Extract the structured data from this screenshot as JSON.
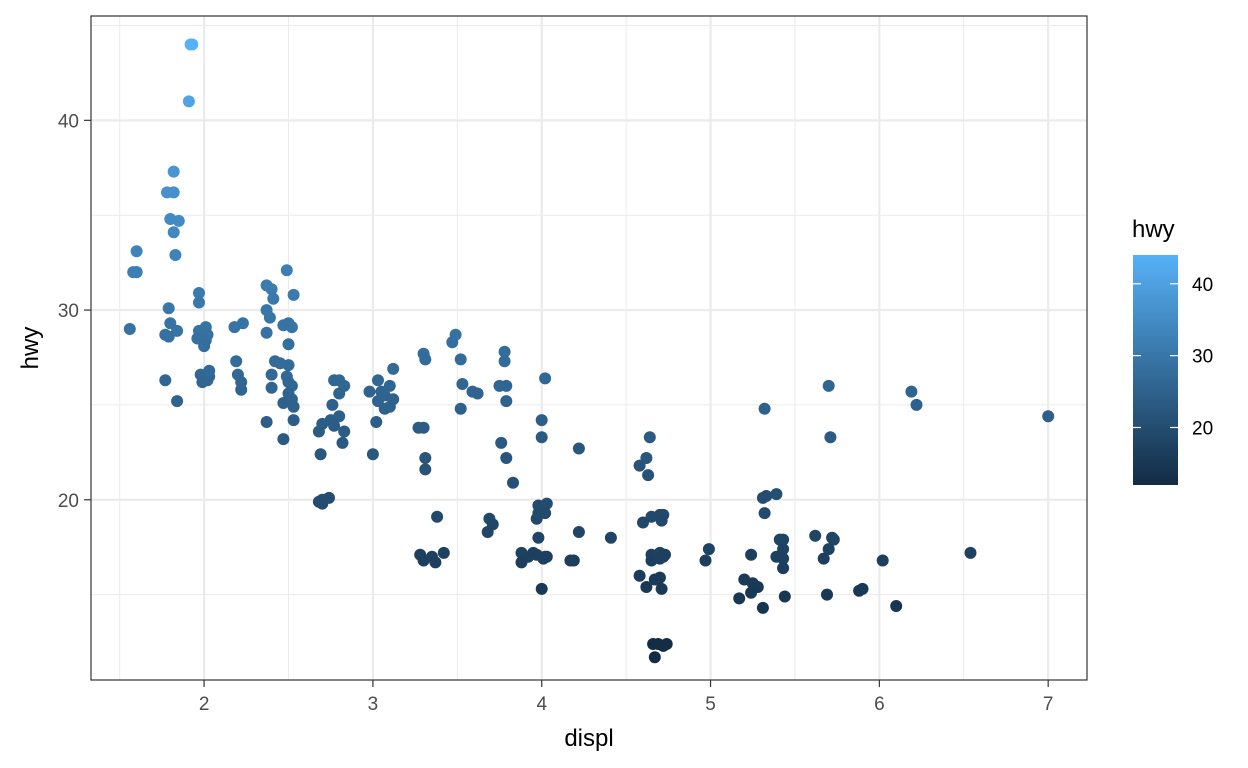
{
  "chart_data": {
    "type": "scatter",
    "xlabel": "displ",
    "ylabel": "hwy",
    "x_ticks": [
      2,
      3,
      4,
      5,
      6,
      7
    ],
    "y_ticks": [
      20,
      30,
      40
    ],
    "xlim": [
      1.33,
      7.23
    ],
    "ylim": [
      10.5,
      45.5
    ],
    "grid": true,
    "legend": {
      "title": "hwy",
      "placement": "right",
      "type": "colorbar",
      "ticks": [
        20,
        30,
        40
      ],
      "range": [
        12,
        44
      ],
      "color_low": "#132B43",
      "color_high": "#56B1F7"
    },
    "points": [
      [
        1.58,
        32
      ],
      [
        1.56,
        29
      ],
      [
        1.6,
        33.1
      ],
      [
        1.6,
        32
      ],
      [
        1.6,
        32
      ],
      [
        1.93,
        44
      ],
      [
        1.92,
        44
      ],
      [
        1.91,
        41
      ],
      [
        1.82,
        37.3
      ],
      [
        1.78,
        36.2
      ],
      [
        1.82,
        36.2
      ],
      [
        1.8,
        34.8
      ],
      [
        1.85,
        34.7
      ],
      [
        1.82,
        34.1
      ],
      [
        1.83,
        32.9
      ],
      [
        1.79,
        30.1
      ],
      [
        1.8,
        29.3
      ],
      [
        1.79,
        28.6
      ],
      [
        1.84,
        28.9
      ],
      [
        1.77,
        28.7
      ],
      [
        1.77,
        26.3
      ],
      [
        1.84,
        25.2
      ],
      [
        1.97,
        30.9
      ],
      [
        1.97,
        30.4
      ],
      [
        2.01,
        29.1
      ],
      [
        1.97,
        28.9
      ],
      [
        2.0,
        28.7
      ],
      [
        1.96,
        28.5
      ],
      [
        2.02,
        28.7
      ],
      [
        2.01,
        28.4
      ],
      [
        2.0,
        28.1
      ],
      [
        1.98,
        26.6
      ],
      [
        1.99,
        26.2
      ],
      [
        2.03,
        26.5
      ],
      [
        2.02,
        26.3
      ],
      [
        2.03,
        26.8
      ],
      [
        2.18,
        29.1
      ],
      [
        2.23,
        29.3
      ],
      [
        2.19,
        27.3
      ],
      [
        2.2,
        26.6
      ],
      [
        2.22,
        26.2
      ],
      [
        2.22,
        25.8
      ],
      [
        2.37,
        31.3
      ],
      [
        2.4,
        31.1
      ],
      [
        2.41,
        30.6
      ],
      [
        2.39,
        29.6
      ],
      [
        2.37,
        30.0
      ],
      [
        2.49,
        32.1
      ],
      [
        2.53,
        30.8
      ],
      [
        2.47,
        29.2
      ],
      [
        2.5,
        29.3
      ],
      [
        2.52,
        29.1
      ],
      [
        2.37,
        28.8
      ],
      [
        2.5,
        28.2
      ],
      [
        2.42,
        27.3
      ],
      [
        2.45,
        27.2
      ],
      [
        2.5,
        27.1
      ],
      [
        2.4,
        26.6
      ],
      [
        2.49,
        26.5
      ],
      [
        2.5,
        26.2
      ],
      [
        2.52,
        26.0
      ],
      [
        2.4,
        25.9
      ],
      [
        2.5,
        25.6
      ],
      [
        2.52,
        25.3
      ],
      [
        2.47,
        25.1
      ],
      [
        2.53,
        24.9
      ],
      [
        2.53,
        24.2
      ],
      [
        2.37,
        24.1
      ],
      [
        2.47,
        23.2
      ],
      [
        2.77,
        26.3
      ],
      [
        2.8,
        26.3
      ],
      [
        2.83,
        26.0
      ],
      [
        2.8,
        25.6
      ],
      [
        2.76,
        25.0
      ],
      [
        2.8,
        24.4
      ],
      [
        2.7,
        24.0
      ],
      [
        2.75,
        24.2
      ],
      [
        2.77,
        23.9
      ],
      [
        2.68,
        23.6
      ],
      [
        2.83,
        23.6
      ],
      [
        2.82,
        23.0
      ],
      [
        2.69,
        22.4
      ],
      [
        2.68,
        19.9
      ],
      [
        2.7,
        19.8
      ],
      [
        2.7,
        20.0
      ],
      [
        2.74,
        20.1
      ],
      [
        3.03,
        26.3
      ],
      [
        2.98,
        25.7
      ],
      [
        3.05,
        25.7
      ],
      [
        3.07,
        25.5
      ],
      [
        3.03,
        25.2
      ],
      [
        3.1,
        26.0
      ],
      [
        3.12,
        25.3
      ],
      [
        3.1,
        24.9
      ],
      [
        3.07,
        24.8
      ],
      [
        3.12,
        26.9
      ],
      [
        3.02,
        24.1
      ],
      [
        3.0,
        22.4
      ],
      [
        3.27,
        23.8
      ],
      [
        3.3,
        23.8
      ],
      [
        3.3,
        27.7
      ],
      [
        3.31,
        27.4
      ],
      [
        3.31,
        22.2
      ],
      [
        3.31,
        21.6
      ],
      [
        3.38,
        19.1
      ],
      [
        3.28,
        17.1
      ],
      [
        3.3,
        16.8
      ],
      [
        3.35,
        17.0
      ],
      [
        3.37,
        16.7
      ],
      [
        3.42,
        17.2
      ],
      [
        3.47,
        28.3
      ],
      [
        3.49,
        28.7
      ],
      [
        3.52,
        27.4
      ],
      [
        3.53,
        26.1
      ],
      [
        3.59,
        25.7
      ],
      [
        3.62,
        25.6
      ],
      [
        3.52,
        24.8
      ],
      [
        3.78,
        27.8
      ],
      [
        3.78,
        27.3
      ],
      [
        3.75,
        26.0
      ],
      [
        3.79,
        26.0
      ],
      [
        3.79,
        25.2
      ],
      [
        3.76,
        23.0
      ],
      [
        3.79,
        22.2
      ],
      [
        3.83,
        20.9
      ],
      [
        3.69,
        19.0
      ],
      [
        3.71,
        18.7
      ],
      [
        3.68,
        18.3
      ],
      [
        3.88,
        17.2
      ],
      [
        3.88,
        16.7
      ],
      [
        3.95,
        17.2
      ],
      [
        3.92,
        17.0
      ],
      [
        3.97,
        17.1
      ],
      [
        4.0,
        24.2
      ],
      [
        4.02,
        26.4
      ],
      [
        4.0,
        23.3
      ],
      [
        3.98,
        19.7
      ],
      [
        4.03,
        19.8
      ],
      [
        3.98,
        19.3
      ],
      [
        4.02,
        19.3
      ],
      [
        3.97,
        19.0
      ],
      [
        3.98,
        18.0
      ],
      [
        4.03,
        17.0
      ],
      [
        4.01,
        16.9
      ],
      [
        4.02,
        17.0
      ],
      [
        4.0,
        15.3
      ],
      [
        4.22,
        22.7
      ],
      [
        4.22,
        18.3
      ],
      [
        4.17,
        16.8
      ],
      [
        4.19,
        16.8
      ],
      [
        4.41,
        18.0
      ],
      [
        4.64,
        23.3
      ],
      [
        4.62,
        22.2
      ],
      [
        4.63,
        21.3
      ],
      [
        4.58,
        21.8
      ],
      [
        4.65,
        19.1
      ],
      [
        4.6,
        18.8
      ],
      [
        4.7,
        19.2
      ],
      [
        4.72,
        19.2
      ],
      [
        4.71,
        18.9
      ],
      [
        4.65,
        17.1
      ],
      [
        4.7,
        17.2
      ],
      [
        4.73,
        17.1
      ],
      [
        4.65,
        16.8
      ],
      [
        4.7,
        16.9
      ],
      [
        4.72,
        17.0
      ],
      [
        4.58,
        16.0
      ],
      [
        4.67,
        15.8
      ],
      [
        4.7,
        15.9
      ],
      [
        4.62,
        15.4
      ],
      [
        4.71,
        15.3
      ],
      [
        4.66,
        12.4
      ],
      [
        4.69,
        12.4
      ],
      [
        4.72,
        12.3
      ],
      [
        4.74,
        12.4
      ],
      [
        4.67,
        11.7
      ],
      [
        4.97,
        16.8
      ],
      [
        4.99,
        17.4
      ],
      [
        5.32,
        24.8
      ],
      [
        5.31,
        20.1
      ],
      [
        5.33,
        20.2
      ],
      [
        5.39,
        20.3
      ],
      [
        5.32,
        19.3
      ],
      [
        5.41,
        17.9
      ],
      [
        5.43,
        17.9
      ],
      [
        5.24,
        17.1
      ],
      [
        5.43,
        17.4
      ],
      [
        5.39,
        17.0
      ],
      [
        5.43,
        16.9
      ],
      [
        5.43,
        16.4
      ],
      [
        5.2,
        15.8
      ],
      [
        5.25,
        15.6
      ],
      [
        5.28,
        15.4
      ],
      [
        5.24,
        15.1
      ],
      [
        5.17,
        14.8
      ],
      [
        5.31,
        14.3
      ],
      [
        5.44,
        14.9
      ],
      [
        5.7,
        26.0
      ],
      [
        5.71,
        23.3
      ],
      [
        5.62,
        18.1
      ],
      [
        5.72,
        18.0
      ],
      [
        5.73,
        17.9
      ],
      [
        5.7,
        17.4
      ],
      [
        5.67,
        16.9
      ],
      [
        5.69,
        15.0
      ],
      [
        5.88,
        15.2
      ],
      [
        5.9,
        15.3
      ],
      [
        6.02,
        16.8
      ],
      [
        6.1,
        14.4
      ],
      [
        6.19,
        25.7
      ],
      [
        6.22,
        25.0
      ],
      [
        6.54,
        17.2
      ],
      [
        7.0,
        24.4
      ]
    ]
  }
}
